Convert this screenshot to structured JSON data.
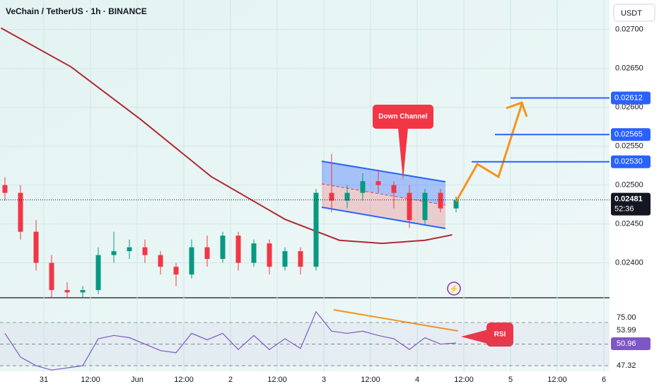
{
  "chart_data": {
    "type": "candlestick",
    "title": "VeChain / TetherUS · 1h · BINANCE",
    "currency": "USDT",
    "x": [
      -10,
      -6,
      -2,
      2,
      6,
      10,
      14,
      18,
      22,
      26,
      30,
      34,
      38,
      42,
      46,
      50,
      54,
      58,
      62,
      66,
      70,
      74,
      78,
      82,
      86,
      90,
      94,
      98,
      102,
      106
    ],
    "open": [
      0.025,
      0.0249,
      0.0244,
      0.024,
      0.02365,
      0.02362,
      0.02365,
      0.0241,
      0.02415,
      0.0242,
      0.0241,
      0.02395,
      0.02385,
      0.0242,
      0.02405,
      0.02435,
      0.024,
      0.02425,
      0.02395,
      0.02415,
      0.02395,
      0.0249,
      0.0248,
      0.0249,
      0.02505,
      0.025,
      0.0249,
      0.02455,
      0.0249,
      0.0247
    ],
    "high": [
      0.0251,
      0.025,
      0.02455,
      0.0241,
      0.02375,
      0.0237,
      0.0242,
      0.0244,
      0.0243,
      0.0243,
      0.02415,
      0.024,
      0.0243,
      0.02435,
      0.0244,
      0.0244,
      0.0243,
      0.0243,
      0.0242,
      0.0242,
      0.02495,
      0.0254,
      0.025,
      0.02515,
      0.0252,
      0.02505,
      0.025,
      0.02495,
      0.02495,
      0.02485
    ],
    "low": [
      0.0248,
      0.0243,
      0.0239,
      0.02355,
      0.02355,
      0.02355,
      0.0236,
      0.024,
      0.02405,
      0.024,
      0.02385,
      0.0237,
      0.0238,
      0.02395,
      0.024,
      0.0239,
      0.02395,
      0.02385,
      0.0239,
      0.02385,
      0.0239,
      0.02465,
      0.0247,
      0.0248,
      0.0249,
      0.0247,
      0.02445,
      0.0245,
      0.02465,
      0.02465
    ],
    "close": [
      0.0249,
      0.0244,
      0.024,
      0.02365,
      0.02362,
      0.02365,
      0.0241,
      0.02415,
      0.0242,
      0.0241,
      0.02395,
      0.02385,
      0.0242,
      0.02405,
      0.02435,
      0.024,
      0.02425,
      0.02395,
      0.02415,
      0.02395,
      0.0249,
      0.0248,
      0.0249,
      0.02505,
      0.025,
      0.0249,
      0.02455,
      0.0249,
      0.0247,
      0.02481
    ],
    "up_color": "#089981",
    "down_color": "#f23645",
    "ma": {
      "x": [
        -11,
        7,
        25,
        43,
        62,
        76,
        87,
        98,
        105
      ],
      "values": [
        0.02702,
        0.02652,
        0.02584,
        0.02511,
        0.02456,
        0.02429,
        0.02425,
        0.02429,
        0.02436
      ],
      "color": "#b22833"
    },
    "xlim": [
      -11.27,
      145.45
    ],
    "xticks": [
      {
        "value": 0,
        "label": "31"
      },
      {
        "value": 12,
        "label": "12:00"
      },
      {
        "value": 24,
        "label": "Jun"
      },
      {
        "value": 36,
        "label": "12:00"
      },
      {
        "value": 48,
        "label": "2"
      },
      {
        "value": 60,
        "label": "12:00"
      },
      {
        "value": 72,
        "label": "3"
      },
      {
        "value": 84,
        "label": "12:00"
      },
      {
        "value": 96,
        "label": "4"
      },
      {
        "value": 108,
        "label": "12:00"
      },
      {
        "value": 120,
        "label": "5"
      },
      {
        "value": 132,
        "label": "12:00"
      },
      {
        "value": 144,
        "label": "6"
      }
    ],
    "ylim": [
      0.02356,
      0.02738
    ],
    "yticks": [
      {
        "value": 0.027,
        "label": "0.02700"
      },
      {
        "value": 0.0265,
        "label": "0.02650"
      },
      {
        "value": 0.026,
        "label": "0.02600"
      },
      {
        "value": 0.0255,
        "label": "0.02550"
      },
      {
        "value": 0.025,
        "label": "0.02500"
      },
      {
        "value": 0.0245,
        "label": "0.02450"
      },
      {
        "value": 0.024,
        "label": "0.02400"
      }
    ],
    "grid": true,
    "levels": [
      {
        "value": 0.02612,
        "label": "0.02612",
        "start": 120
      },
      {
        "value": 0.02565,
        "label": "0.02565",
        "start": 116
      },
      {
        "value": {
          "value": 0.0253,
          "label": "0.02530"
        },
        "start": 110
      }
    ],
    "level_color": "#2962ff",
    "last_price": 0.02481,
    "countdown": "52:36",
    "annotations": [
      "Down Channel",
      "RSI"
    ],
    "rsi": {
      "x": [
        -10,
        -6,
        -2,
        2,
        6,
        10,
        14,
        18,
        22,
        26,
        30,
        34,
        38,
        42,
        46,
        50,
        54,
        58,
        62,
        66,
        70,
        74,
        78,
        82,
        86,
        90,
        94,
        98,
        102,
        106
      ],
      "values": [
        60,
        38,
        30,
        26,
        28,
        30,
        55,
        58,
        56,
        50,
        44,
        42,
        60,
        54,
        60,
        45,
        58,
        45,
        55,
        46,
        80,
        62,
        60,
        62,
        58,
        55,
        45,
        56,
        50,
        51
      ],
      "color": "#7e57c2",
      "ylim": [
        24.8,
        92.3
      ],
      "bands": [
        70,
        50,
        30
      ],
      "labels": [
        "75.00",
        "53.99",
        "50.96",
        "47.32"
      ]
    }
  }
}
